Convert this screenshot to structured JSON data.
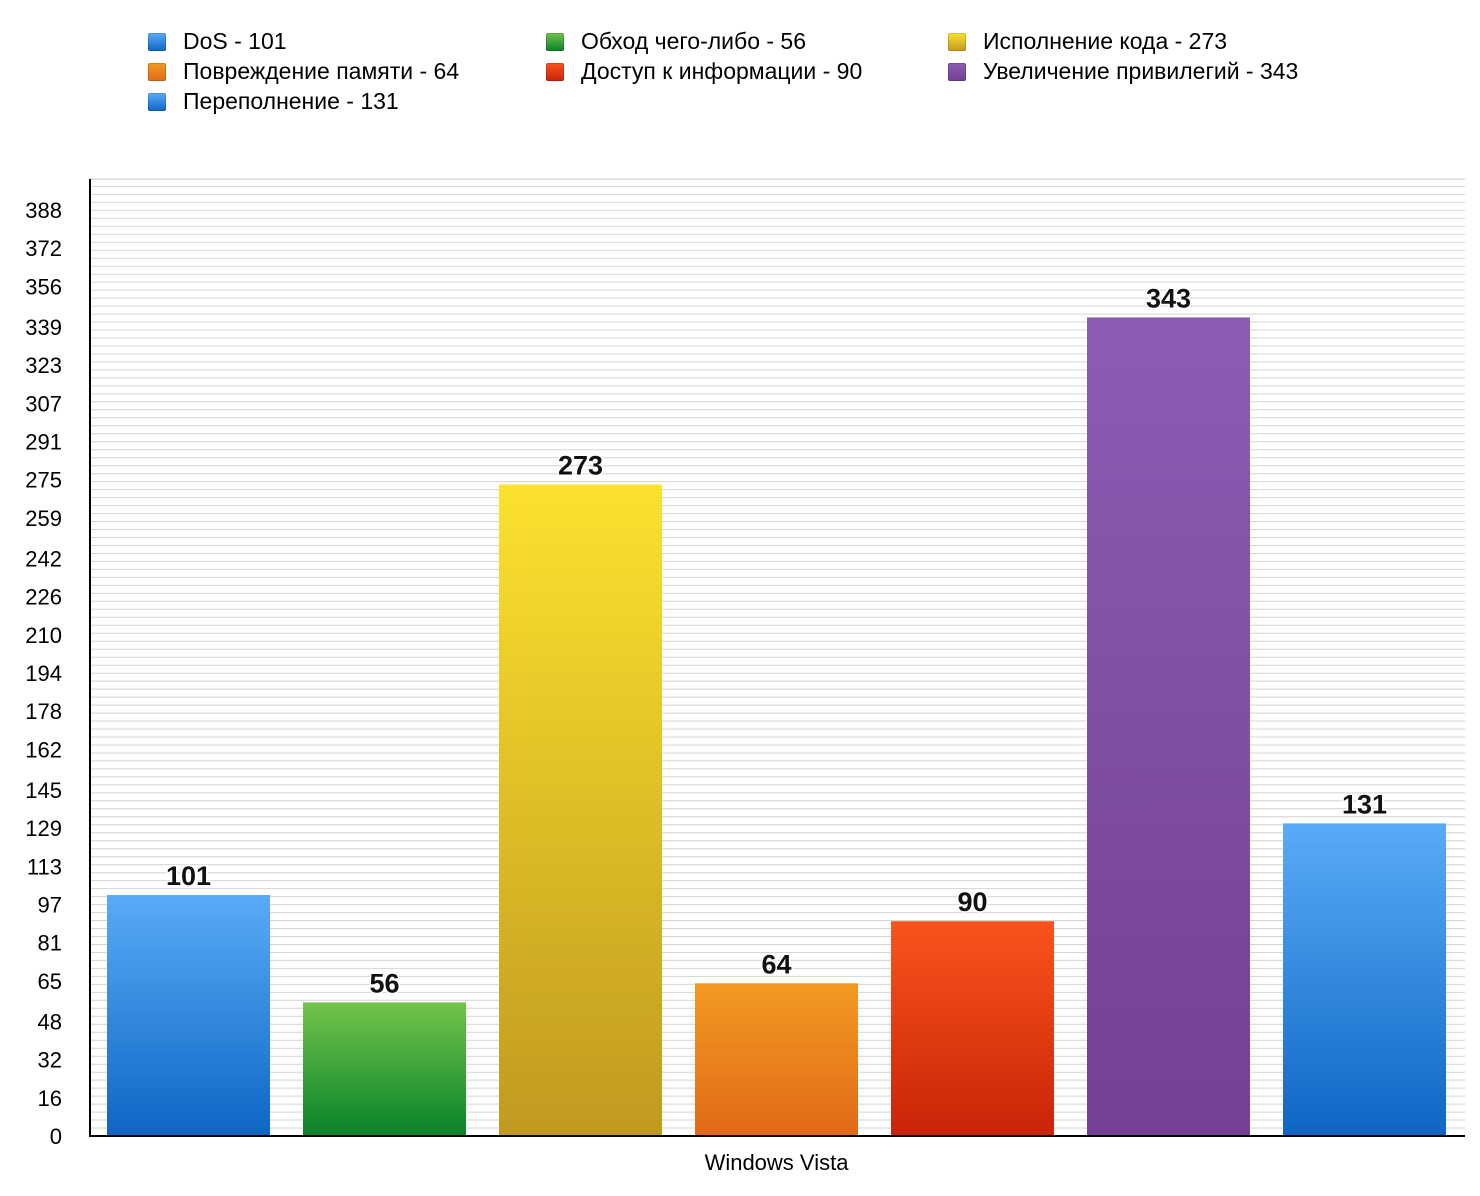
{
  "chart_data": {
    "type": "bar",
    "title": "",
    "xlabel": "",
    "ylabel": "",
    "categories": [
      "Windows Vista"
    ],
    "ylim": [
      0,
      401
    ],
    "yticks": [
      0,
      16,
      32,
      48,
      65,
      81,
      97,
      113,
      129,
      145,
      162,
      178,
      194,
      210,
      226,
      242,
      259,
      275,
      291,
      307,
      323,
      339,
      356,
      372,
      388
    ],
    "grid": true,
    "legend_position": "top",
    "series": [
      {
        "name": "DoS",
        "legend": "DoS - 101",
        "values": [
          101
        ],
        "color": "#3d8ee8",
        "color_top": "#5aabf8",
        "color_bottom": "#0e66c4"
      },
      {
        "name": "Обход чего-либо",
        "legend": "Обход чего-либо - 56",
        "values": [
          56
        ],
        "color": "#3fa33a",
        "color_top": "#72c44a",
        "color_bottom": "#08822a"
      },
      {
        "name": "Исполнение кода",
        "legend": "Исполнение кода - 273",
        "values": [
          273
        ],
        "color": "#e3c124",
        "color_top": "#fbe22e",
        "color_bottom": "#c09a1f"
      },
      {
        "name": "Повреждение памяти",
        "legend": "Повреждение памяти - 64",
        "values": [
          64
        ],
        "color": "#ec8419",
        "color_top": "#f39a22",
        "color_bottom": "#e06a18"
      },
      {
        "name": "Доступ к информации",
        "legend": "Доступ к информации - 90",
        "values": [
          90
        ],
        "color": "#eb3a12",
        "color_top": "#fb531c",
        "color_bottom": "#c82408"
      },
      {
        "name": "Увеличение привилегий",
        "legend": "Увеличение привилегий - 343",
        "values": [
          343
        ],
        "color": "#7f4aa6",
        "color_top": "#8b5db4",
        "color_bottom": "#753f95"
      },
      {
        "name": "Переполнение",
        "legend": "Переполнение - 131",
        "values": [
          131
        ],
        "color": "#3d8ee8",
        "color_top": "#5aabf8",
        "color_bottom": "#0e66c4"
      }
    ]
  }
}
